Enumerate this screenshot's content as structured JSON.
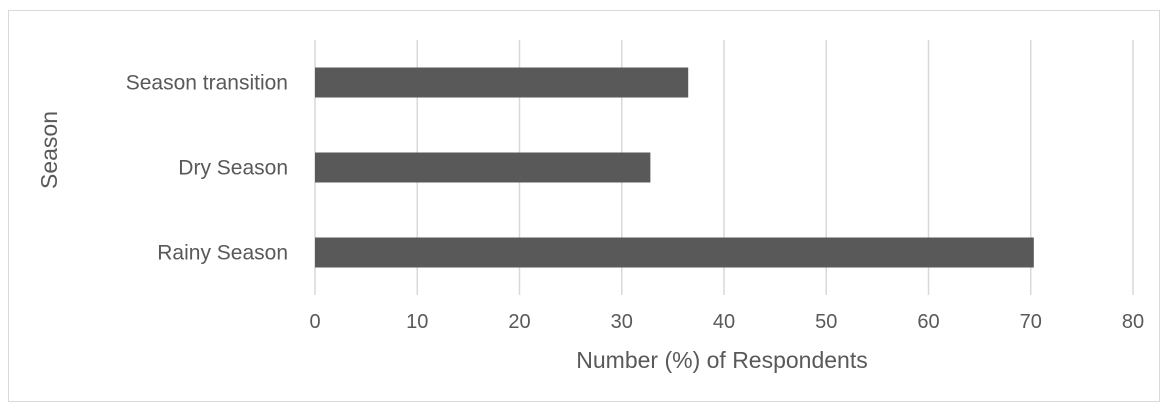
{
  "chart_data": {
    "type": "bar",
    "orientation": "horizontal",
    "categories": [
      "Season transition",
      "Dry Season",
      "Rainy Season"
    ],
    "values": [
      36.5,
      32.8,
      70.3
    ],
    "title": "",
    "xlabel": "Number (%) of Respondents",
    "ylabel": "Season",
    "xlim": [
      0,
      80
    ],
    "xticks": [
      0,
      10,
      20,
      30,
      40,
      50,
      60,
      70,
      80
    ],
    "grid": "vertical",
    "legend": "none",
    "colors": {
      "bar": "#595959",
      "grid": "#d9d9d9",
      "text": "#595959"
    }
  }
}
